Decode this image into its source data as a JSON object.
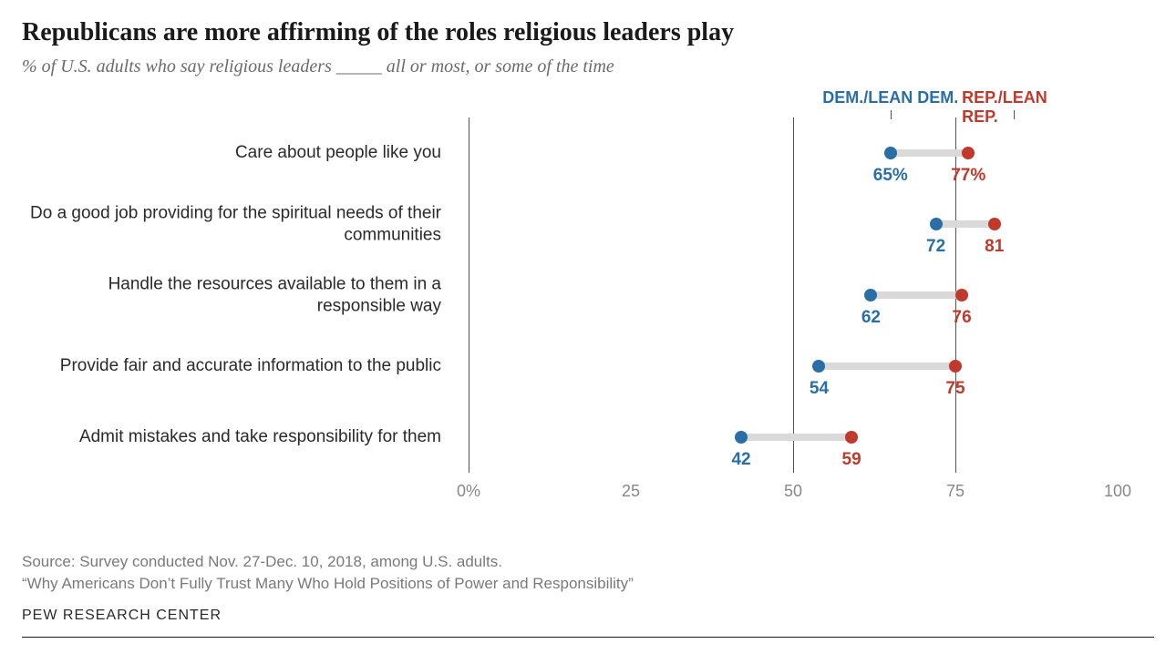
{
  "title": "Republicans are more affirming of the roles religious leaders play",
  "subtitle": "% of U.S. adults who say religious leaders _____ all or most, or some of the time",
  "chart": {
    "type": "dot-plot",
    "xlim": [
      0,
      100
    ],
    "xtick_step": 25,
    "xtick_labels": [
      "0%",
      "25",
      "50",
      "75",
      "100"
    ],
    "gridlines_at": [
      0,
      50,
      75
    ],
    "gridline_color": "#555555",
    "connector_color": "#d9d9d9",
    "background_color": "#ffffff",
    "label_fontsize": 19,
    "value_fontsize": 19,
    "legend": {
      "dem": {
        "label": "DEM./LEAN DEM.",
        "color": "#2a6ea6",
        "pos_pct": 65
      },
      "rep": {
        "label": "REP./LEAN REP.",
        "color": "#c0392b",
        "pos_pct": 84
      }
    },
    "series": [
      {
        "key": "dem",
        "color": "#2a6ea6"
      },
      {
        "key": "rep",
        "color": "#c0392b"
      }
    ],
    "rows": [
      {
        "label": "Care about people like you",
        "dem": 65,
        "rep": 77,
        "dem_display": "65%",
        "rep_display": "77%"
      },
      {
        "label": "Do a good job providing for the spiritual needs of their communities",
        "dem": 72,
        "rep": 81,
        "dem_display": "72",
        "rep_display": "81"
      },
      {
        "label": "Handle the resources available to them in a responsible way",
        "dem": 62,
        "rep": 76,
        "dem_display": "62",
        "rep_display": "76"
      },
      {
        "label": "Provide fair and accurate information to the public",
        "dem": 54,
        "rep": 75,
        "dem_display": "54",
        "rep_display": "75"
      },
      {
        "label": "Admit mistakes and take responsibility for them",
        "dem": 42,
        "rep": 59,
        "dem_display": "42",
        "rep_display": "59"
      }
    ]
  },
  "footer": {
    "source": "Source: Survey conducted Nov. 27-Dec. 10, 2018, among U.S. adults.",
    "note": "“Why Americans Don’t Fully Trust Many Who Hold Positions of Power and Responsibility”",
    "attribution": "PEW RESEARCH CENTER"
  }
}
